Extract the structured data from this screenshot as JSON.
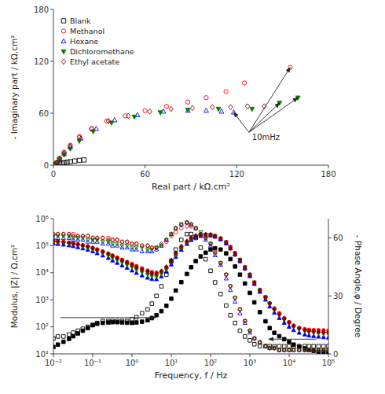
{
  "chart_data": [
    {
      "type": "scatter",
      "xlabel": "Real part / kΩ.cm²",
      "ylabel": "- Imaginary part / kΩ.cm²",
      "xlim": [
        0,
        180
      ],
      "ylim": [
        0,
        180
      ],
      "xticks": [
        0,
        60,
        120,
        180
      ],
      "yticks": [
        0,
        60,
        120,
        180
      ],
      "grid": false,
      "legend": "upper-left",
      "series": [
        {
          "name": "Blank",
          "color": "black",
          "marker": "square-open",
          "x": [
            0.05,
            0.1,
            0.2,
            0.3,
            0.5,
            0.7,
            1.0,
            1.5,
            2.0,
            3.0,
            4.0,
            5.5,
            7.0,
            9.0,
            11.0,
            14.0,
            17.0,
            20.0
          ],
          "values": [
            0.02,
            0.05,
            0.1,
            0.15,
            0.25,
            0.35,
            0.5,
            0.7,
            0.9,
            1.3,
            1.7,
            2.2,
            2.8,
            3.4,
            4.0,
            4.8,
            5.5,
            6.0
          ]
        },
        {
          "name": "Methanol",
          "color": "red",
          "marker": "circle-open",
          "x": [
            0.3,
            0.8,
            2.0,
            4.0,
            7.0,
            11.0,
            17.0,
            25.0,
            35.0,
            47.0,
            60.0,
            74.0,
            88.0,
            100.0,
            113.0,
            125.0,
            155.0
          ],
          "values": [
            0.2,
            0.8,
            3.0,
            8.0,
            15.0,
            23.0,
            33.0,
            42.0,
            51.0,
            57.0,
            63.0,
            68.0,
            73.0,
            78.0,
            85.0,
            95.0,
            113.0
          ]
        },
        {
          "name": "Hexane",
          "color": "blue",
          "marker": "triangle-up-open",
          "x": [
            0.3,
            0.8,
            2.0,
            4.0,
            7.0,
            11.0,
            18.0,
            28.0,
            40.0,
            55.0,
            72.0,
            88.0,
            100.0,
            110.0,
            118.0
          ],
          "values": [
            0.15,
            0.6,
            2.5,
            7.0,
            13.0,
            21.0,
            31.0,
            42.0,
            52.0,
            58.0,
            62.0,
            63.0,
            63.0,
            62.0,
            61.0
          ]
        },
        {
          "name": "Dichloromethane",
          "color": "green",
          "marker": "triangle-down-filled",
          "x": [
            0.3,
            0.8,
            2.0,
            4.0,
            7.0,
            11.0,
            17.0,
            26.0,
            38.0,
            53.0,
            70.0,
            88.0,
            108.0,
            130.0,
            148.0,
            160.0
          ],
          "values": [
            0.15,
            0.6,
            2.5,
            6.5,
            12.0,
            19.0,
            28.0,
            39.0,
            49.0,
            56.0,
            61.0,
            64.0,
            65.0,
            65.0,
            72.0,
            78.0
          ]
        },
        {
          "name": "Ethyl acetate",
          "color": "#8B0000",
          "marker": "diamond-open",
          "x": [
            0.3,
            0.8,
            2.0,
            4.0,
            7.0,
            11.0,
            17.0,
            25.0,
            36.0,
            49.0,
            63.0,
            77.0,
            91.0,
            104.0,
            116.0,
            127.0,
            138.0
          ],
          "values": [
            0.2,
            0.8,
            3.0,
            7.5,
            14.0,
            22.0,
            32.0,
            42.0,
            51.0,
            57.0,
            62.0,
            65.0,
            66.0,
            67.0,
            67.0,
            68.0,
            68.0
          ]
        }
      ],
      "annotations": [
        {
          "text": "10mHz",
          "x": 130.0,
          "y": 36.0
        }
      ],
      "arrows": [
        {
          "x": 128.0,
          "y": 38.0,
          "to_x": 155.0,
          "to_y": 113.0
        },
        {
          "x": 128.0,
          "y": 38.0,
          "to_x": 160.0,
          "to_y": 78.0
        },
        {
          "x": 128.0,
          "y": 38.0,
          "to_x": 118.0,
          "to_y": 61.0
        },
        {
          "x": 128.0,
          "y": 38.0,
          "to_x": 148.0,
          "to_y": 72.0
        }
      ]
    },
    {
      "type": "scatter",
      "log": true,
      "xlabel": "Frequency, f / Hz",
      "ylabel": "Modulus, |Z| / Ω.cm²",
      "y2label": "- Phase Angle,φ / Degree",
      "xlim": [
        0.01,
        100000
      ],
      "ylim": [
        10,
        1000000
      ],
      "y2lim": [
        0,
        70
      ],
      "xticks": [
        {
          "value": 0.01,
          "label": "10⁻²"
        },
        {
          "value": 0.1,
          "label": "10⁻¹"
        },
        {
          "value": 1,
          "label": "10⁰"
        },
        {
          "value": 10,
          "label": "10¹"
        },
        {
          "value": 100,
          "label": "10²"
        },
        {
          "value": 1000,
          "label": "10³"
        },
        {
          "value": 10000,
          "label": "10⁴"
        },
        {
          "value": 100000,
          "label": "10⁵"
        }
      ],
      "yticks": [
        {
          "value": 10,
          "label": "10¹"
        },
        {
          "value": 100,
          "label": "10²"
        },
        {
          "value": 1000,
          "label": "10³"
        },
        {
          "value": 10000,
          "label": "10⁴"
        },
        {
          "value": 100000,
          "label": "10⁵"
        },
        {
          "value": 1000000,
          "label": "10⁶"
        }
      ],
      "y2ticks": [
        0,
        30,
        60
      ],
      "grid": false,
      "x": [
        0.01,
        0.013,
        0.018,
        0.025,
        0.032,
        0.042,
        0.056,
        0.075,
        0.1,
        0.13,
        0.18,
        0.25,
        0.32,
        0.42,
        0.56,
        0.75,
        1.0,
        1.3,
        1.8,
        2.5,
        3.2,
        4.2,
        5.6,
        7.5,
        10,
        13,
        18,
        25,
        32,
        42,
        56,
        75,
        100,
        130,
        180,
        250,
        320,
        420,
        560,
        750,
        1000,
        1300,
        1800,
        2500,
        3200,
        4200,
        5600,
        7500,
        10000,
        13000,
        18000,
        25000,
        32000,
        42000,
        56000,
        75000,
        100000
      ],
      "series": [
        {
          "color": "black",
          "marker": "square-filled",
          "values": [
            18,
            22,
            28,
            36,
            45,
            57,
            72,
            90,
            115,
            130,
            140,
            145,
            148,
            148,
            145,
            142,
            140,
            145,
            155,
            175,
            210,
            270,
            380,
            600,
            1100,
            2200,
            4500,
            9000,
            16000,
            27000,
            40000,
            55000,
            72000,
            80000,
            72000,
            52000,
            32000,
            17000,
            8500,
            4000,
            1800,
            800,
            350,
            160,
            90,
            60,
            45,
            35,
            28,
            22,
            18,
            16,
            14,
            13,
            12,
            12,
            11
          ]
        },
        {
          "color": "red",
          "marker": "circle-filled",
          "values": [
            150000,
            145000,
            138000,
            130000,
            122000,
            113000,
            104000,
            94000,
            83000,
            72000,
            61000,
            51000,
            43000,
            36000,
            30000,
            25000,
            21000,
            17500,
            14500,
            12000,
            10500,
            10000,
            11000,
            15000,
            25000,
            45000,
            80000,
            130000,
            175000,
            215000,
            240000,
            248000,
            240000,
            215000,
            170000,
            120000,
            78000,
            46000,
            26000,
            14000,
            7500,
            4000,
            2100,
            1200,
            750,
            480,
            320,
            210,
            150,
            110,
            90,
            82,
            78,
            76,
            75,
            74,
            73
          ]
        },
        {
          "color": "blue",
          "marker": "triangle-up-filled",
          "values": [
            120000,
            115000,
            109000,
            102000,
            95000,
            87000,
            79000,
            70000,
            61000,
            52000,
            43000,
            35000,
            28000,
            23000,
            18500,
            15000,
            12000,
            9800,
            7900,
            6500,
            5800,
            5700,
            7200,
            11000,
            20000,
            38000,
            70000,
            115000,
            160000,
            200000,
            225000,
            238000,
            235000,
            215000,
            170000,
            122000,
            80000,
            48000,
            27000,
            14500,
            7500,
            3800,
            1950,
            1000,
            560,
            330,
            210,
            140,
            100,
            75,
            60,
            52,
            48,
            45,
            43,
            41,
            40
          ]
        },
        {
          "color": "green",
          "marker": "triangle-down-filled",
          "values": [
            135000,
            130000,
            124000,
            117000,
            110000,
            102000,
            93000,
            83000,
            73000,
            63000,
            53000,
            44000,
            36000,
            29000,
            24000,
            19500,
            15800,
            12800,
            10400,
            8600,
            7500,
            7300,
            9000,
            13500,
            24000,
            45000,
            82000,
            130000,
            178000,
            218000,
            245000,
            256000,
            252000,
            230000,
            185000,
            135000,
            88000,
            53000,
            30000,
            16000,
            8500,
            4400,
            2300,
            1250,
            720,
            430,
            275,
            185,
            135,
            100,
            82,
            70,
            64,
            61,
            58,
            56,
            55
          ]
        },
        {
          "color": "#8B0000",
          "marker": "diamond-filled",
          "values": [
            145000,
            140000,
            134000,
            127000,
            119000,
            111000,
            102000,
            92000,
            81000,
            71000,
            60000,
            50000,
            42000,
            35000,
            29000,
            24000,
            19500,
            16000,
            13000,
            11000,
            9500,
            9200,
            11500,
            16500,
            29000,
            54000,
            95000,
            148000,
            197000,
            235000,
            255000,
            263000,
            255000,
            230000,
            185000,
            135000,
            88000,
            53000,
            30000,
            16000,
            8500,
            4400,
            2300,
            1250,
            720,
            440,
            285,
            192,
            142,
            108,
            88,
            76,
            70,
            67,
            65,
            63,
            62
          ]
        },
        {
          "color": "black",
          "marker": "square-open",
          "axis": "y2",
          "values": [
            8,
            9,
            9,
            10,
            11,
            12,
            13,
            14,
            15,
            16,
            17,
            17,
            17,
            17,
            17,
            17,
            18,
            19,
            21,
            23,
            26,
            30,
            35,
            41,
            48,
            54,
            59,
            62,
            62,
            60,
            55,
            49,
            43,
            37,
            31,
            25,
            20,
            16,
            12,
            9,
            7,
            5,
            4,
            4,
            4,
            4,
            4,
            4,
            4,
            4,
            4,
            4,
            4,
            4,
            4,
            4,
            4
          ]
        },
        {
          "color": "red",
          "marker": "circle-open",
          "axis": "y2",
          "values": [
            62,
            62,
            62,
            62,
            62,
            61,
            61,
            61,
            60,
            60,
            60,
            60,
            59,
            59,
            58,
            58,
            57,
            57,
            56,
            56,
            55,
            55,
            56,
            58,
            61,
            63,
            65,
            66,
            66,
            65,
            62,
            60,
            57,
            53,
            47,
            41,
            35,
            29,
            23,
            17,
            12,
            8,
            6,
            4,
            3,
            3,
            2,
            2,
            2,
            2,
            2,
            2,
            2,
            2,
            2,
            2,
            2
          ]
        },
        {
          "color": "blue",
          "marker": "triangle-up-open",
          "axis": "y2",
          "values": [
            60,
            60,
            60,
            60,
            59,
            59,
            59,
            58,
            58,
            58,
            57,
            57,
            56,
            56,
            55,
            55,
            54,
            54,
            53,
            53,
            53,
            54,
            56,
            59,
            62,
            65,
            67,
            68,
            67,
            65,
            62,
            59,
            56,
            51,
            46,
            39,
            33,
            27,
            21,
            16,
            11,
            8,
            6,
            4,
            3,
            3,
            2,
            2,
            2,
            2,
            2,
            2,
            2,
            2,
            2,
            2,
            2
          ]
        },
        {
          "color": "green",
          "marker": "triangle-down-open",
          "axis": "y2",
          "values": [
            61,
            61,
            61,
            61,
            60,
            60,
            60,
            59,
            59,
            59,
            58,
            58,
            57,
            57,
            56,
            56,
            55,
            55,
            55,
            54,
            54,
            55,
            56,
            59,
            62,
            65,
            67,
            68,
            67,
            65,
            63,
            60,
            57,
            52,
            47,
            41,
            35,
            29,
            23,
            17,
            12,
            8,
            6,
            4,
            3,
            3,
            2,
            2,
            2,
            2,
            2,
            2,
            2,
            2,
            2,
            2,
            2
          ]
        },
        {
          "color": "#8B0000",
          "marker": "diamond-open",
          "axis": "y2",
          "values": [
            62,
            62,
            62,
            62,
            61,
            61,
            61,
            61,
            60,
            60,
            60,
            59,
            59,
            59,
            58,
            58,
            57,
            57,
            56,
            56,
            55,
            55,
            57,
            59,
            62,
            65,
            67,
            68,
            67,
            65,
            62,
            60,
            57,
            52,
            47,
            41,
            35,
            29,
            23,
            17,
            12,
            8,
            6,
            4,
            3,
            3,
            2,
            2,
            2,
            2,
            2,
            2,
            2,
            2,
            2,
            2,
            2
          ]
        }
      ],
      "arrows": [
        {
          "x": 0.015,
          "y": 220,
          "to_x": 4.0,
          "to_y": 220
        },
        {
          "x": 50000,
          "y": 35,
          "to_x": 3000,
          "to_y": 35
        }
      ]
    }
  ]
}
